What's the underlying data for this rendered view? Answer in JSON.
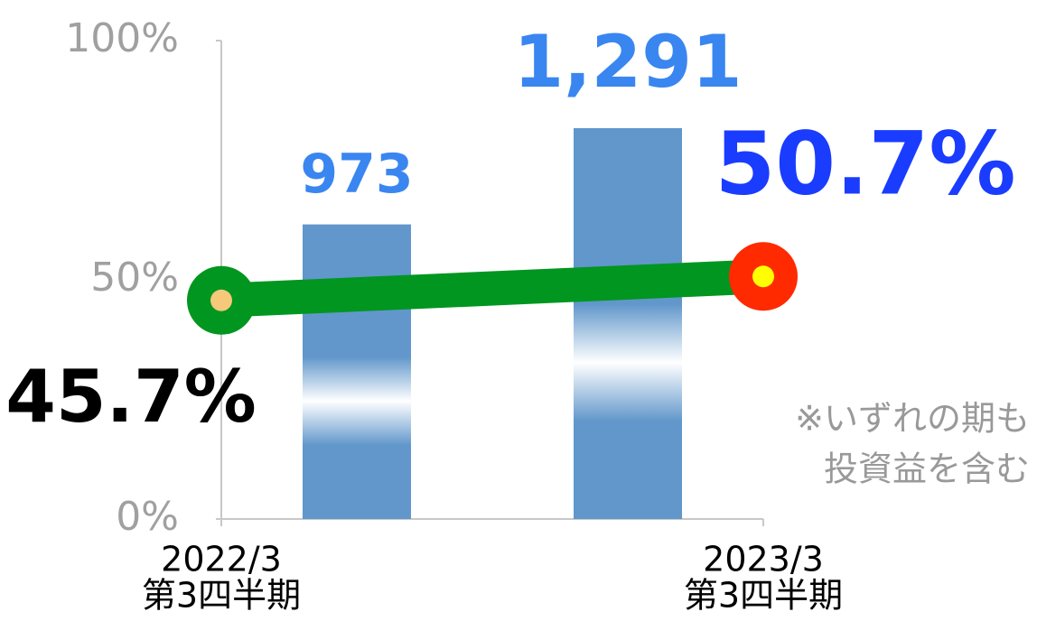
{
  "chart_data": {
    "type": "bar",
    "categories": [
      [
        "2022/3",
        "第3四半期"
      ],
      [
        "2023/3",
        "第3四半期"
      ]
    ],
    "series": [
      {
        "type": "bar",
        "axis": "y2",
        "color": "#6197cb",
        "values": [
          973,
          1291
        ],
        "value_labels": [
          "973",
          "1,291"
        ],
        "label_color": "#3a86f0"
      },
      {
        "type": "line",
        "color": "#009620",
        "values": [
          45.7,
          50.7
        ],
        "value_labels": [
          "45.7%",
          "50.7%"
        ],
        "label_colors": [
          "#000000",
          "#1a3cff"
        ]
      }
    ],
    "ylim": [
      0,
      100
    ],
    "yticks": [
      {
        "value": 0,
        "label": "0%"
      },
      {
        "value": 50,
        "label": "50%"
      },
      {
        "value": 100,
        "label": "100%"
      }
    ],
    "y2lim": [
      0,
      1580
    ],
    "annotations": [
      "※いずれの期も",
      "投資益を含む"
    ]
  }
}
